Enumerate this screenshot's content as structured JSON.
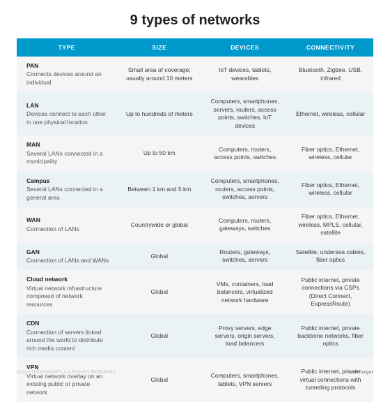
{
  "title": "9 types of networks",
  "columns": [
    "TYPE",
    "SIZE",
    "DEVICES",
    "CONNECTIVITY"
  ],
  "col_widths_pct": [
    28,
    24,
    24,
    24
  ],
  "header_bg": "#0099cc",
  "header_fg": "#ffffff",
  "row_bg_odd": "#f5f5f5",
  "row_bg_even": "#eaf2f5",
  "text_color": "#3a3a3a",
  "title_color": "#222222",
  "title_fontsize_pt": 20,
  "header_fontsize_pt": 8.5,
  "cell_fontsize_pt": 8.5,
  "rows": [
    {
      "type_name": "PAN",
      "type_desc": "Connects devices around an individual",
      "size": "Small area of coverage; usually around 10 meters",
      "devices": "IoT devices, tablets, wearables",
      "connectivity": "Bluetooth, Zigbee, USB, infrared"
    },
    {
      "type_name": "LAN",
      "type_desc": "Devices connect to each other in one physical location",
      "size": "Up to hundreds of meters",
      "devices": "Computers, smartphones, servers, routers, access points, switches, IoT devices",
      "connectivity": "Ethernet, wireless, cellular"
    },
    {
      "type_name": "MAN",
      "type_desc": "Several LANs connected in a municipality",
      "size": "Up to 50 km",
      "devices": "Computers, routers, access points, switches",
      "connectivity": "Fiber optics, Ethernet, wireless, cellular"
    },
    {
      "type_name": "Campus",
      "type_desc": "Several LANs connected in a general area",
      "size": "Between 1 km and 5 km",
      "devices": "Computers, smartphones, routers, access points, switches, servers",
      "connectivity": "Fiber optics, Ethernet, wireless, cellular"
    },
    {
      "type_name": "WAN",
      "type_desc": "Connection of LANs",
      "size": "Countrywide or global",
      "devices": "Computers, routers, gateways, switches",
      "connectivity": "Fiber optics, Ethernet, wireless, MPLS, cellular, satellite"
    },
    {
      "type_name": "GAN",
      "type_desc": "Connection of LANs and WANs",
      "size": "Global",
      "devices": "Routers, gateways, switches, servers",
      "connectivity": "Satellite, undersea cables, fiber optics"
    },
    {
      "type_name": "Cloud network",
      "type_desc": "Virtual network infrastructure composed of network resources",
      "size": "Global",
      "devices": "VMs, containers, load balancers, virtualized network hardware",
      "connectivity": "Public internet, private connections via CSPs (Direct Connect, ExpressRoute)"
    },
    {
      "type_name": "CDN",
      "type_desc": "Connection of servers linked around the world to distribute rich media content",
      "size": "Global",
      "devices": "Proxy servers, edge servers, origin servers, load balancers",
      "connectivity": "Public internet, private backbone networks, fiber optics"
    },
    {
      "type_name": "VPN",
      "type_desc": "Virtual network overlay on an existing public or private network",
      "size": "Global",
      "devices": "Computers, smartphones, tablets, VPN servers",
      "connectivity": "Public internet, private virtual connections with tunneling protocols"
    }
  ],
  "footer_left": "©2024 TECHTARGET. ALL RIGHTS RESERVED",
  "footer_right": "TechTarget"
}
